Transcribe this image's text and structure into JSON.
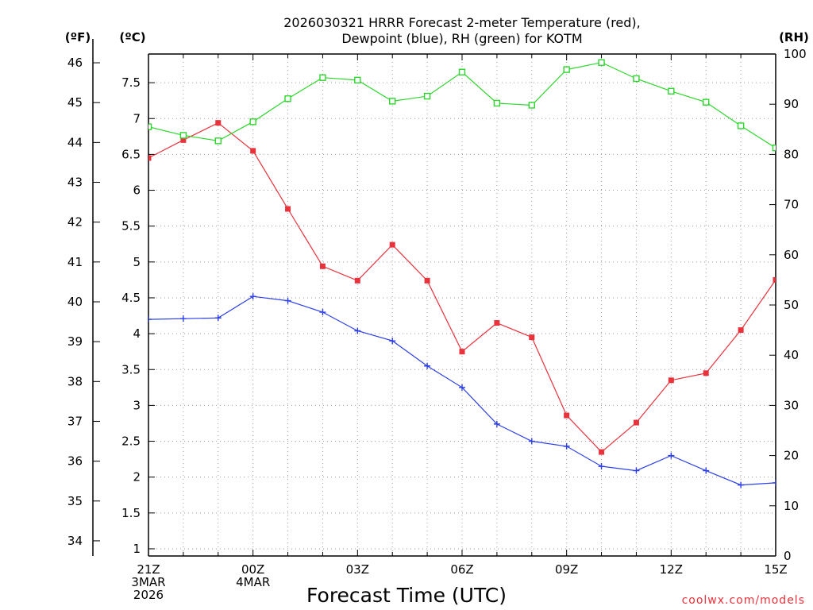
{
  "chart_data": {
    "type": "line",
    "title": [
      "2026030321 HRRR Forecast 2-meter Temperature (red),",
      "Dewpoint (blue), RH (green) for KOTM"
    ],
    "xlabel": "Forecast Time (UTC)",
    "credit": "coolwx.com/models",
    "units": {
      "fahrenheit": "(ºF)",
      "celsius": "(ºC)",
      "rh": "(RH)"
    },
    "x": [
      0,
      1,
      2,
      3,
      4,
      5,
      6,
      7,
      8,
      9,
      10,
      11,
      12,
      13,
      14,
      15,
      16,
      17,
      18
    ],
    "x_range": [
      0,
      18
    ],
    "x_ticks": [
      {
        "x": 0,
        "lines": [
          "21Z",
          "3MAR",
          "2026"
        ]
      },
      {
        "x": 3,
        "lines": [
          "00Z",
          "4MAR"
        ]
      },
      {
        "x": 6,
        "lines": [
          "03Z"
        ]
      },
      {
        "x": 9,
        "lines": [
          "06Z"
        ]
      },
      {
        "x": 12,
        "lines": [
          "09Z"
        ]
      },
      {
        "x": 15,
        "lines": [
          "12Z"
        ]
      },
      {
        "x": 18,
        "lines": [
          "15Z"
        ]
      }
    ],
    "celsius_axis": {
      "range": [
        0.9,
        7.9
      ],
      "ticks": [
        "1",
        "1.5",
        "2",
        "2.5",
        "3",
        "3.5",
        "4",
        "4.5",
        "5",
        "5.5",
        "6",
        "6.5",
        "7",
        "7.5"
      ]
    },
    "fahrenheit_axis": {
      "ticks": [
        "34",
        "35",
        "36",
        "37",
        "38",
        "39",
        "40",
        "41",
        "42",
        "43",
        "44",
        "45",
        "46"
      ]
    },
    "rh_axis": {
      "range": [
        0,
        100
      ],
      "ticks": [
        "0",
        "10",
        "20",
        "30",
        "40",
        "50",
        "60",
        "70",
        "80",
        "90",
        "100"
      ]
    },
    "series": [
      {
        "name": "Temperature",
        "axis": "celsius",
        "color": "#e8323c",
        "marker": "filled-square",
        "values": [
          6.45,
          6.7,
          6.94,
          6.55,
          5.74,
          4.94,
          4.74,
          5.24,
          4.74,
          3.75,
          4.15,
          3.95,
          2.86,
          2.35,
          2.76,
          3.35,
          3.45,
          4.05,
          4.75
        ]
      },
      {
        "name": "Dewpoint",
        "axis": "celsius",
        "color": "#2b3ee8",
        "marker": "plus",
        "values": [
          4.2,
          4.21,
          4.22,
          4.52,
          4.46,
          4.3,
          4.04,
          3.9,
          3.55,
          3.25,
          2.74,
          2.5,
          2.43,
          2.15,
          2.09,
          2.3,
          2.09,
          1.89,
          1.92
        ]
      },
      {
        "name": "RH",
        "axis": "rh",
        "color": "#2ed62e",
        "marker": "open-square",
        "values": [
          85.5,
          83.8,
          82.7,
          86.5,
          91.1,
          95.3,
          94.8,
          90.6,
          91.6,
          96.4,
          90.2,
          89.8,
          96.9,
          98.3,
          95.1,
          92.6,
          90.4,
          85.7,
          81.3
        ]
      }
    ]
  }
}
